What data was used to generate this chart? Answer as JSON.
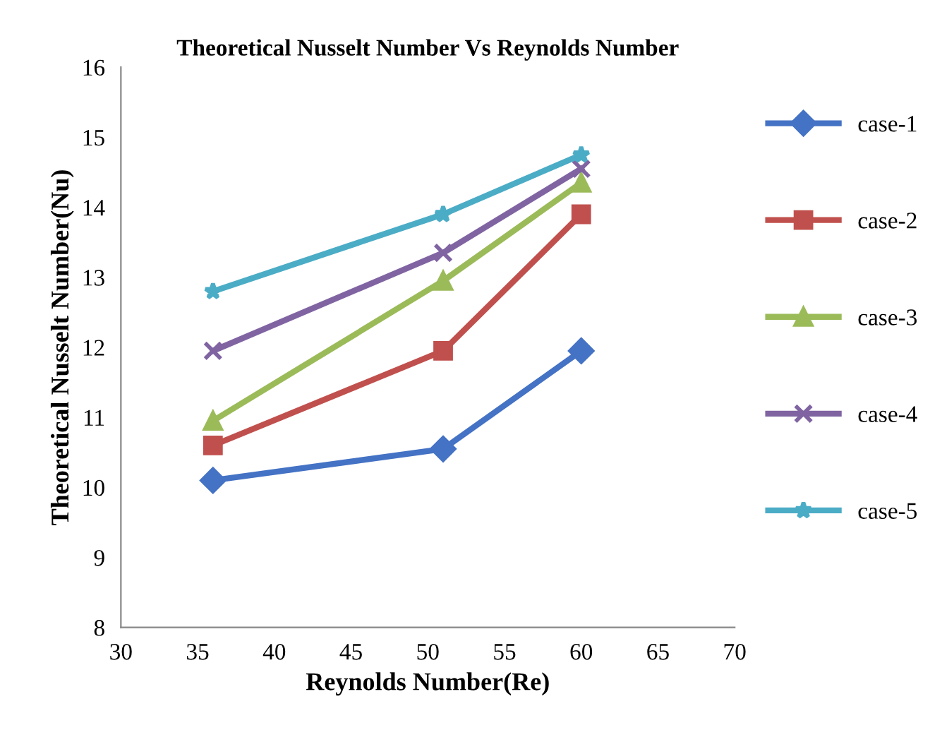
{
  "chart_data": {
    "type": "line",
    "title": "Theoretical Nusselt Number Vs Reynolds Number",
    "xlabel": "Reynolds Number(Re)",
    "ylabel": "Theoretical Nusselt Number(Nu)",
    "x": [
      36,
      51,
      60
    ],
    "series": [
      {
        "name": "case-1",
        "color": "#4472c4",
        "marker": "diamond",
        "values": [
          10.1,
          10.55,
          11.95
        ]
      },
      {
        "name": "case-2",
        "color": "#c0504d",
        "marker": "square",
        "values": [
          10.6,
          11.95,
          13.9
        ]
      },
      {
        "name": "case-3",
        "color": "#9bbb59",
        "marker": "triangle",
        "values": [
          10.95,
          12.95,
          14.35
        ]
      },
      {
        "name": "case-4",
        "color": "#8064a2",
        "marker": "cross",
        "values": [
          11.95,
          13.35,
          14.55
        ]
      },
      {
        "name": "case-5",
        "color": "#4bacc6",
        "marker": "star",
        "values": [
          12.8,
          13.9,
          14.75
        ]
      }
    ],
    "xlim": [
      30,
      70
    ],
    "xticks": [
      30,
      35,
      40,
      45,
      50,
      55,
      60,
      65,
      70
    ],
    "ylim": [
      8,
      16
    ],
    "yticks": [
      8,
      9,
      10,
      11,
      12,
      13,
      14,
      15,
      16
    ],
    "legend": "right",
    "line_style": "solid"
  }
}
